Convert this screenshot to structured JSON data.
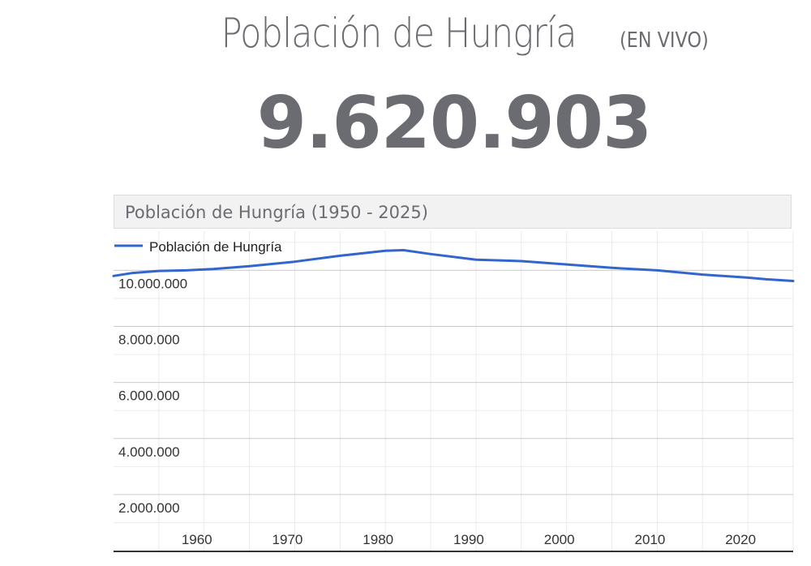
{
  "page": {
    "title": "Población de Hungría",
    "live_label": "(EN VIVO)",
    "counter": "9.620.903"
  },
  "colors": {
    "text": "#6b6b72",
    "line": "#3366cc",
    "grid_major": "#cccccc",
    "grid_minor": "#ebebeb",
    "axis": "#333333"
  },
  "chart_data": {
    "type": "line",
    "title": "Población de Hungría (1950 - 2025)",
    "legend": "Población de Hungría",
    "legend_position": "top-left",
    "x_ticks": [
      1960,
      1970,
      1980,
      1990,
      2000,
      2010,
      2020
    ],
    "y_ticks": [
      2000000,
      4000000,
      6000000,
      8000000,
      10000000
    ],
    "y_tick_labels": [
      "2.000.000",
      "4.000.000",
      "6.000.000",
      "8.000.000",
      "10.000.000"
    ],
    "xlim": [
      1950,
      2025
    ],
    "ylim": [
      0,
      11400000
    ],
    "grid": true,
    "series": [
      {
        "name": "Población de Hungría",
        "x": [
          1950,
          1952,
          1955,
          1958,
          1961,
          1965,
          1970,
          1975,
          1980,
          1982,
          1985,
          1990,
          1995,
          2000,
          2005,
          2010,
          2015,
          2020,
          2022,
          2025
        ],
        "y": [
          9800000,
          9900000,
          9980000,
          10000000,
          10050000,
          10150000,
          10310000,
          10520000,
          10700000,
          10720000,
          10580000,
          10380000,
          10330000,
          10210000,
          10090000,
          10000000,
          9850000,
          9740000,
          9680000,
          9620000
        ]
      }
    ]
  }
}
